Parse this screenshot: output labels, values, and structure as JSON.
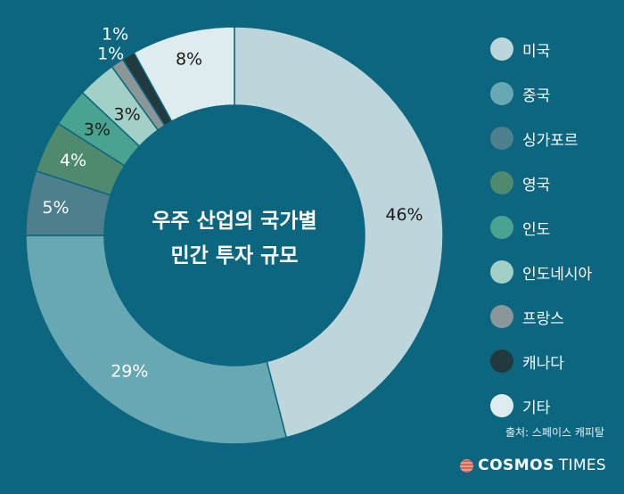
{
  "chart_data": {
    "type": "donut",
    "title_lines": [
      "우주 산업의 국가별",
      "민간 투자 규모"
    ],
    "categories": [
      "미국",
      "중국",
      "싱가포르",
      "영국",
      "인도",
      "인도네시아",
      "프랑스",
      "캐나다",
      "기타"
    ],
    "values": [
      46,
      29,
      5,
      4,
      3,
      3,
      1,
      1,
      8
    ],
    "labels": [
      "46%",
      "29%",
      "5%",
      "4%",
      "3%",
      "3%",
      "1%",
      "1%",
      "8%"
    ],
    "colors": [
      "#bdd6db",
      "#67a8b3",
      "#4d7f8c",
      "#4f8a6e",
      "#4aa291",
      "#a2cfc6",
      "#8b9699",
      "#22393e",
      "#dfecef"
    ],
    "label_colors": [
      "#1b1b1b",
      "#ffffff",
      "#ffffff",
      "#ffffff",
      "#1b1b1b",
      "#1b1b1b",
      "#ffffff",
      "#ffffff",
      "#1b1b1b"
    ],
    "background": "#0d6680",
    "legend_position": "right"
  },
  "source": "출처: 스페이스 캐피탈",
  "brand": {
    "name_bold": "COSMOS",
    "name_light": "TIMES"
  }
}
